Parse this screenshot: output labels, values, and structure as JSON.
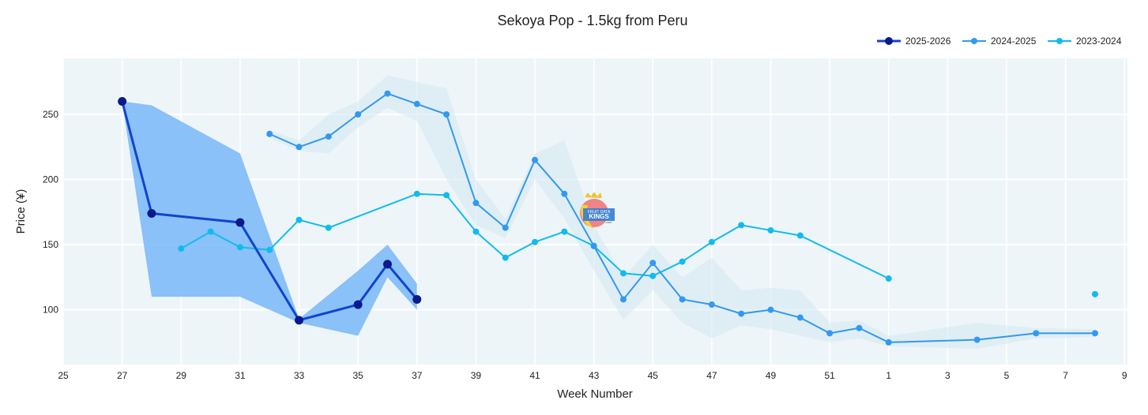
{
  "chart_data": {
    "type": "line",
    "title": "Sekoya Pop - 1.5kg from Peru",
    "xlabel": "Week Number",
    "ylabel": "Price (¥)",
    "x_ticks": [
      "25",
      "27",
      "29",
      "31",
      "33",
      "35",
      "37",
      "39",
      "41",
      "43",
      "45",
      "47",
      "49",
      "51",
      "1",
      "3",
      "5",
      "7",
      "9"
    ],
    "y_ticks": [
      100,
      150,
      200,
      250
    ],
    "ylim": [
      58,
      293
    ],
    "grid": true,
    "legend_position": "top-right",
    "series": [
      {
        "name": "2025-2026",
        "color": "#0a1a8c",
        "line_color": "#1144cc",
        "points": [
          {
            "x": "27",
            "y": 260
          },
          {
            "x": "28",
            "y": 174
          },
          {
            "x": "31",
            "y": 167
          },
          {
            "x": "33",
            "y": 92
          },
          {
            "x": "35",
            "y": 104
          },
          {
            "x": "36",
            "y": 135
          },
          {
            "x": "37",
            "y": 108
          }
        ],
        "band": [
          {
            "x": "27",
            "lo": 260,
            "hi": 260
          },
          {
            "x": "28",
            "lo": 110,
            "hi": 257
          },
          {
            "x": "31",
            "lo": 110,
            "hi": 220
          },
          {
            "x": "33",
            "lo": 90,
            "hi": 93
          },
          {
            "x": "35",
            "lo": 80,
            "hi": 130
          },
          {
            "x": "36",
            "lo": 125,
            "hi": 150
          },
          {
            "x": "37",
            "lo": 100,
            "hi": 120
          }
        ]
      },
      {
        "name": "2024-2025",
        "color": "#3399ee",
        "points": [
          {
            "x": "32",
            "y": 235
          },
          {
            "x": "33",
            "y": 225
          },
          {
            "x": "34",
            "y": 233
          },
          {
            "x": "35",
            "y": 250
          },
          {
            "x": "36",
            "y": 266
          },
          {
            "x": "37",
            "y": 258
          },
          {
            "x": "38",
            "y": 250
          },
          {
            "x": "39",
            "y": 182
          },
          {
            "x": "40",
            "y": 163
          },
          {
            "x": "41",
            "y": 215
          },
          {
            "x": "42",
            "y": 189
          },
          {
            "x": "43",
            "y": 149
          },
          {
            "x": "44",
            "y": 108
          },
          {
            "x": "45",
            "y": 136
          },
          {
            "x": "46",
            "y": 108
          },
          {
            "x": "47",
            "y": 104
          },
          {
            "x": "48",
            "y": 97
          },
          {
            "x": "49",
            "y": 100
          },
          {
            "x": "50",
            "y": 94
          },
          {
            "x": "51",
            "y": 82
          },
          {
            "x": "52",
            "y": 86
          },
          {
            "x": "1",
            "y": 75
          },
          {
            "x": "4",
            "y": 77
          },
          {
            "x": "6",
            "y": 82
          },
          {
            "x": "8",
            "y": 82
          }
        ],
        "band": [
          {
            "x": "32",
            "lo": 232,
            "hi": 238
          },
          {
            "x": "33",
            "lo": 222,
            "hi": 230
          },
          {
            "x": "34",
            "lo": 220,
            "hi": 250
          },
          {
            "x": "35",
            "lo": 240,
            "hi": 260
          },
          {
            "x": "36",
            "lo": 255,
            "hi": 280
          },
          {
            "x": "37",
            "lo": 245,
            "hi": 275
          },
          {
            "x": "38",
            "lo": 200,
            "hi": 270
          },
          {
            "x": "39",
            "lo": 165,
            "hi": 200
          },
          {
            "x": "40",
            "lo": 155,
            "hi": 170
          },
          {
            "x": "41",
            "lo": 200,
            "hi": 220
          },
          {
            "x": "42",
            "lo": 170,
            "hi": 230
          },
          {
            "x": "43",
            "lo": 130,
            "hi": 165
          },
          {
            "x": "44",
            "lo": 92,
            "hi": 125
          },
          {
            "x": "45",
            "lo": 115,
            "hi": 150
          },
          {
            "x": "46",
            "lo": 90,
            "hi": 125
          },
          {
            "x": "47",
            "lo": 78,
            "hi": 140
          },
          {
            "x": "48",
            "lo": 88,
            "hi": 115
          },
          {
            "x": "49",
            "lo": 85,
            "hi": 117
          },
          {
            "x": "50",
            "lo": 80,
            "hi": 115
          },
          {
            "x": "51",
            "lo": 75,
            "hi": 90
          },
          {
            "x": "52",
            "lo": 78,
            "hi": 92
          },
          {
            "x": "1",
            "lo": 72,
            "hi": 80
          },
          {
            "x": "4",
            "lo": 70,
            "hi": 90
          },
          {
            "x": "6",
            "lo": 78,
            "hi": 86
          },
          {
            "x": "8",
            "lo": 79,
            "hi": 85
          }
        ]
      },
      {
        "name": "2023-2024",
        "color": "#11bbee",
        "points": [
          {
            "x": "29",
            "y": 147
          },
          {
            "x": "30",
            "y": 160
          },
          {
            "x": "31",
            "y": 148
          },
          {
            "x": "32",
            "y": 146
          },
          {
            "x": "33",
            "y": 169
          },
          {
            "x": "34",
            "y": 163
          },
          {
            "x": "37",
            "y": 189
          },
          {
            "x": "38",
            "y": 188
          },
          {
            "x": "39",
            "y": 160
          },
          {
            "x": "40",
            "y": 140
          },
          {
            "x": "41",
            "y": 152
          },
          {
            "x": "42",
            "y": 160
          },
          {
            "x": "43",
            "y": 149
          },
          {
            "x": "44",
            "y": 128
          },
          {
            "x": "45",
            "y": 126
          },
          {
            "x": "46",
            "y": 137
          },
          {
            "x": "47",
            "y": 152
          },
          {
            "x": "48",
            "y": 165
          },
          {
            "x": "49",
            "y": 161
          },
          {
            "x": "50",
            "y": 157
          },
          {
            "x": "1",
            "y": 124
          },
          {
            "x": "8",
            "y": 112,
            "isolated": true
          }
        ]
      }
    ]
  },
  "watermark": {
    "text_lines": [
      "FRUIT DATA",
      "KINGS",
      ".com"
    ]
  }
}
